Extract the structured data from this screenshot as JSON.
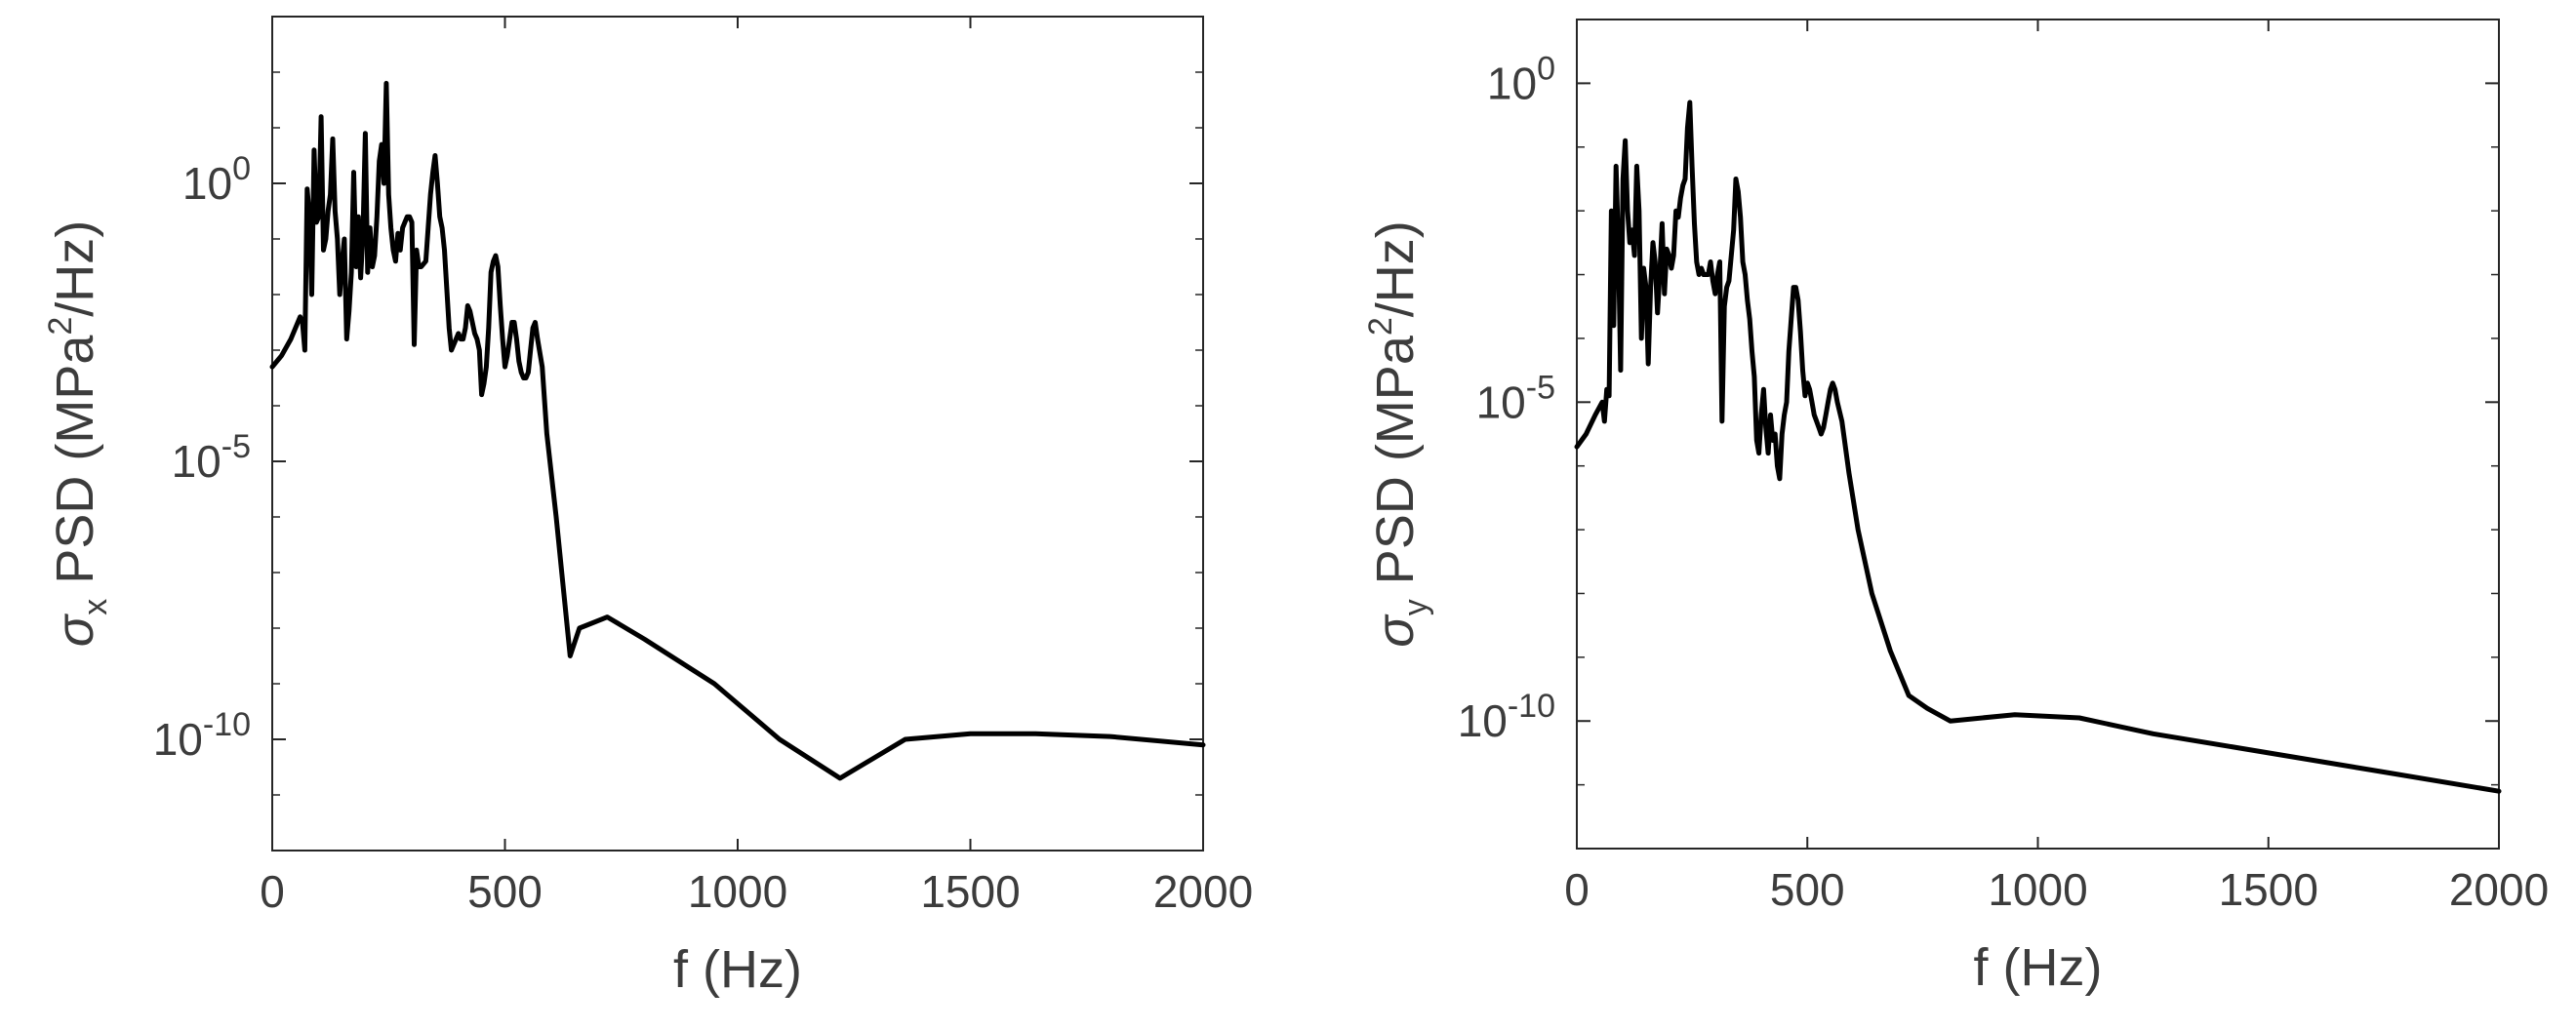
{
  "chart_data": [
    {
      "type": "line",
      "title": "",
      "scale": {
        "x": "linear",
        "y": "log"
      },
      "xlabel": "f (Hz)",
      "ylabel": {
        "symbol": "σ",
        "subscript": "x",
        "text": " PSD (MPa",
        "superscript": "2",
        "tail": "/Hz)"
      },
      "xlim": [
        0,
        2000
      ],
      "ylim_exponent": [
        -12,
        3
      ],
      "xticks": [
        {
          "value": 0,
          "label": "0"
        },
        {
          "value": 500,
          "label": "500"
        },
        {
          "value": 1000,
          "label": "1000"
        },
        {
          "value": 1500,
          "label": "1500"
        },
        {
          "value": 2000,
          "label": "2000"
        }
      ],
      "yticks": [
        {
          "exp": 0,
          "base": "10",
          "sup": "0"
        },
        {
          "exp": -5,
          "base": "10",
          "sup": "-5"
        },
        {
          "exp": -10,
          "base": "10",
          "sup": "-10"
        }
      ],
      "series": [
        {
          "name": "sigma_x PSD",
          "color": "#000000",
          "points": [
            [
              0,
              -3.3
            ],
            [
              20,
              -3.1
            ],
            [
              40,
              -2.8
            ],
            [
              60,
              -2.4
            ],
            [
              65,
              -2.5
            ],
            [
              70,
              -3.0
            ],
            [
              75,
              -0.1
            ],
            [
              80,
              -0.6
            ],
            [
              85,
              -2.0
            ],
            [
              90,
              0.6
            ],
            [
              95,
              -0.7
            ],
            [
              100,
              -0.6
            ],
            [
              105,
              1.2
            ],
            [
              110,
              -1.2
            ],
            [
              115,
              -1.0
            ],
            [
              120,
              -0.5
            ],
            [
              125,
              -0.2
            ],
            [
              130,
              0.8
            ],
            [
              135,
              -0.5
            ],
            [
              140,
              -1.0
            ],
            [
              145,
              -2.0
            ],
            [
              150,
              -1.4
            ],
            [
              155,
              -1.0
            ],
            [
              160,
              -2.8
            ],
            [
              165,
              -2.3
            ],
            [
              170,
              -1.6
            ],
            [
              175,
              0.2
            ],
            [
              180,
              -1.5
            ],
            [
              185,
              -0.6
            ],
            [
              190,
              -1.7
            ],
            [
              195,
              -0.9
            ],
            [
              200,
              0.9
            ],
            [
              205,
              -1.6
            ],
            [
              210,
              -0.8
            ],
            [
              215,
              -1.5
            ],
            [
              220,
              -1.3
            ],
            [
              225,
              -0.6
            ],
            [
              230,
              0.4
            ],
            [
              235,
              0.7
            ],
            [
              240,
              0.0
            ],
            [
              245,
              1.8
            ],
            [
              250,
              -0.2
            ],
            [
              255,
              -0.8
            ],
            [
              260,
              -1.2
            ],
            [
              265,
              -1.4
            ],
            [
              270,
              -0.9
            ],
            [
              275,
              -1.2
            ],
            [
              280,
              -0.8
            ],
            [
              285,
              -0.7
            ],
            [
              290,
              -0.6
            ],
            [
              295,
              -0.6
            ],
            [
              300,
              -0.7
            ],
            [
              305,
              -2.9
            ],
            [
              310,
              -1.2
            ],
            [
              315,
              -1.5
            ],
            [
              320,
              -1.5
            ],
            [
              330,
              -1.4
            ],
            [
              335,
              -0.8
            ],
            [
              340,
              -0.2
            ],
            [
              345,
              0.2
            ],
            [
              350,
              0.5
            ],
            [
              355,
              0.0
            ],
            [
              360,
              -0.6
            ],
            [
              365,
              -0.8
            ],
            [
              370,
              -1.2
            ],
            [
              375,
              -1.9
            ],
            [
              380,
              -2.6
            ],
            [
              385,
              -3.0
            ],
            [
              390,
              -2.9
            ],
            [
              395,
              -2.8
            ],
            [
              400,
              -2.7
            ],
            [
              405,
              -2.8
            ],
            [
              410,
              -2.8
            ],
            [
              415,
              -2.6
            ],
            [
              420,
              -2.2
            ],
            [
              425,
              -2.3
            ],
            [
              430,
              -2.5
            ],
            [
              435,
              -2.7
            ],
            [
              440,
              -2.8
            ],
            [
              445,
              -3.0
            ],
            [
              450,
              -3.8
            ],
            [
              455,
              -3.6
            ],
            [
              460,
              -3.3
            ],
            [
              465,
              -2.6
            ],
            [
              470,
              -1.6
            ],
            [
              475,
              -1.4
            ],
            [
              480,
              -1.3
            ],
            [
              485,
              -1.5
            ],
            [
              490,
              -2.2
            ],
            [
              495,
              -2.8
            ],
            [
              500,
              -3.3
            ],
            [
              505,
              -3.1
            ],
            [
              510,
              -2.8
            ],
            [
              515,
              -2.5
            ],
            [
              520,
              -2.5
            ],
            [
              525,
              -2.8
            ],
            [
              530,
              -3.2
            ],
            [
              535,
              -3.4
            ],
            [
              540,
              -3.5
            ],
            [
              545,
              -3.5
            ],
            [
              550,
              -3.4
            ],
            [
              555,
              -3.0
            ],
            [
              560,
              -2.6
            ],
            [
              565,
              -2.5
            ],
            [
              570,
              -2.8
            ],
            [
              580,
              -3.3
            ],
            [
              590,
              -4.5
            ],
            [
              610,
              -6.0
            ],
            [
              640,
              -8.5
            ],
            [
              660,
              -8.0
            ],
            [
              720,
              -7.8
            ],
            [
              800,
              -8.2
            ],
            [
              950,
              -9.0
            ],
            [
              1090,
              -10.0
            ],
            [
              1220,
              -10.7
            ],
            [
              1360,
              -10.0
            ],
            [
              1500,
              -9.9
            ],
            [
              1640,
              -9.9
            ],
            [
              1800,
              -9.95
            ],
            [
              2000,
              -10.1
            ]
          ]
        }
      ]
    },
    {
      "type": "line",
      "title": "",
      "scale": {
        "x": "linear",
        "y": "log"
      },
      "xlabel": "f (Hz)",
      "ylabel": {
        "symbol": "σ",
        "subscript": "y",
        "text": " PSD (MPa",
        "superscript": "2",
        "tail": "/Hz)"
      },
      "xlim": [
        0,
        2000
      ],
      "ylim_exponent": [
        -12,
        1
      ],
      "xticks": [
        {
          "value": 0,
          "label": "0"
        },
        {
          "value": 500,
          "label": "500"
        },
        {
          "value": 1000,
          "label": "1000"
        },
        {
          "value": 1500,
          "label": "1500"
        },
        {
          "value": 2000,
          "label": "2000"
        }
      ],
      "yticks": [
        {
          "exp": 0,
          "base": "10",
          "sup": "0"
        },
        {
          "exp": -5,
          "base": "10",
          "sup": "-5"
        },
        {
          "exp": -10,
          "base": "10",
          "sup": "-10"
        }
      ],
      "series": [
        {
          "name": "sigma_y PSD",
          "color": "#000000",
          "points": [
            [
              0,
              -5.7
            ],
            [
              20,
              -5.5
            ],
            [
              40,
              -5.2
            ],
            [
              55,
              -5.0
            ],
            [
              60,
              -5.3
            ],
            [
              65,
              -4.8
            ],
            [
              70,
              -4.9
            ],
            [
              75,
              -2.0
            ],
            [
              80,
              -3.8
            ],
            [
              85,
              -1.3
            ],
            [
              90,
              -2.5
            ],
            [
              95,
              -4.5
            ],
            [
              100,
              -1.5
            ],
            [
              105,
              -0.9
            ],
            [
              110,
              -2.0
            ],
            [
              115,
              -2.5
            ],
            [
              120,
              -2.3
            ],
            [
              125,
              -2.7
            ],
            [
              130,
              -1.3
            ],
            [
              135,
              -2.0
            ],
            [
              140,
              -4.0
            ],
            [
              145,
              -2.9
            ],
            [
              150,
              -3.2
            ],
            [
              155,
              -4.4
            ],
            [
              160,
              -3.2
            ],
            [
              165,
              -2.5
            ],
            [
              170,
              -2.8
            ],
            [
              175,
              -3.6
            ],
            [
              180,
              -3.0
            ],
            [
              185,
              -2.2
            ],
            [
              190,
              -3.3
            ],
            [
              195,
              -2.6
            ],
            [
              200,
              -2.7
            ],
            [
              205,
              -2.9
            ],
            [
              210,
              -2.7
            ],
            [
              215,
              -2.0
            ],
            [
              220,
              -2.1
            ],
            [
              225,
              -1.8
            ],
            [
              230,
              -1.6
            ],
            [
              235,
              -1.5
            ],
            [
              240,
              -0.7
            ],
            [
              245,
              -0.3
            ],
            [
              250,
              -1.3
            ],
            [
              255,
              -2.2
            ],
            [
              260,
              -2.8
            ],
            [
              265,
              -3.0
            ],
            [
              270,
              -2.9
            ],
            [
              275,
              -3.0
            ],
            [
              280,
              -3.0
            ],
            [
              285,
              -3.0
            ],
            [
              290,
              -2.8
            ],
            [
              295,
              -3.1
            ],
            [
              300,
              -3.3
            ],
            [
              305,
              -3.0
            ],
            [
              310,
              -2.8
            ],
            [
              315,
              -5.3
            ],
            [
              320,
              -3.5
            ],
            [
              325,
              -3.2
            ],
            [
              330,
              -3.1
            ],
            [
              340,
              -2.3
            ],
            [
              345,
              -1.5
            ],
            [
              350,
              -1.7
            ],
            [
              355,
              -2.1
            ],
            [
              360,
              -2.8
            ],
            [
              365,
              -3.0
            ],
            [
              370,
              -3.4
            ],
            [
              375,
              -3.7
            ],
            [
              380,
              -4.2
            ],
            [
              385,
              -4.6
            ],
            [
              390,
              -5.6
            ],
            [
              395,
              -5.8
            ],
            [
              400,
              -5.2
            ],
            [
              405,
              -4.8
            ],
            [
              410,
              -5.4
            ],
            [
              415,
              -5.8
            ],
            [
              420,
              -5.2
            ],
            [
              425,
              -5.6
            ],
            [
              430,
              -5.5
            ],
            [
              435,
              -6.0
            ],
            [
              440,
              -6.2
            ],
            [
              445,
              -5.5
            ],
            [
              450,
              -5.2
            ],
            [
              455,
              -5.0
            ],
            [
              460,
              -4.2
            ],
            [
              465,
              -3.7
            ],
            [
              470,
              -3.2
            ],
            [
              475,
              -3.2
            ],
            [
              480,
              -3.4
            ],
            [
              485,
              -3.9
            ],
            [
              490,
              -4.5
            ],
            [
              495,
              -4.9
            ],
            [
              500,
              -4.7
            ],
            [
              505,
              -4.8
            ],
            [
              510,
              -5.0
            ],
            [
              515,
              -5.2
            ],
            [
              520,
              -5.3
            ],
            [
              525,
              -5.4
            ],
            [
              530,
              -5.5
            ],
            [
              535,
              -5.4
            ],
            [
              540,
              -5.2
            ],
            [
              545,
              -5.0
            ],
            [
              550,
              -4.8
            ],
            [
              555,
              -4.7
            ],
            [
              560,
              -4.8
            ],
            [
              565,
              -5.0
            ],
            [
              575,
              -5.3
            ],
            [
              590,
              -6.1
            ],
            [
              610,
              -7.0
            ],
            [
              640,
              -8.0
            ],
            [
              680,
              -8.9
            ],
            [
              720,
              -9.6
            ],
            [
              760,
              -9.8
            ],
            [
              810,
              -10.0
            ],
            [
              950,
              -9.9
            ],
            [
              1090,
              -9.95
            ],
            [
              1250,
              -10.2
            ],
            [
              1500,
              -10.5
            ],
            [
              1750,
              -10.8
            ],
            [
              2000,
              -11.1
            ]
          ]
        }
      ]
    }
  ]
}
